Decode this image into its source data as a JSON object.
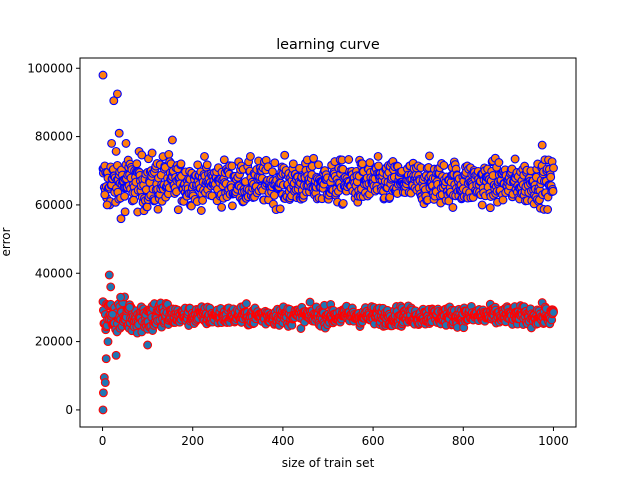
{
  "chart_data": {
    "type": "scatter",
    "title": "learning curve",
    "xlabel": "size of train set",
    "ylabel": "error",
    "xlim": [
      -50,
      1050
    ],
    "ylim": [
      -5000,
      103000
    ],
    "x_ticks": [
      "0",
      "200",
      "400",
      "600",
      "800",
      "1000"
    ],
    "x_tick_values": [
      0,
      200,
      400,
      600,
      800,
      1000
    ],
    "y_ticks": [
      "0",
      "20000",
      "40000",
      "60000",
      "80000",
      "100000"
    ],
    "y_tick_values": [
      0,
      20000,
      40000,
      60000,
      80000,
      100000
    ],
    "grid": false,
    "legend": false,
    "x_range": [
      1,
      1000
    ],
    "x_step": 1,
    "series": [
      {
        "role": "upper band (cross-validation error)",
        "face_color": "#ff7f0e",
        "edge_color": "#0000ff",
        "centre_approx": 66500,
        "spread_approx": 5000,
        "notable_points": [
          [
            1,
            98000
          ],
          [
            5,
            63000
          ],
          [
            10,
            60000
          ],
          [
            20,
            78000
          ],
          [
            25,
            90500
          ],
          [
            33,
            92500
          ],
          [
            37,
            81000
          ],
          [
            50,
            58000
          ],
          [
            52,
            78000
          ],
          [
            155,
            79000
          ],
          [
            975,
            77500
          ]
        ]
      },
      {
        "role": "lower band (training error)",
        "face_color": "#1f77b4",
        "edge_color": "#ff0000",
        "centre_approx": 27500,
        "spread_approx": 2000,
        "notable_points": [
          [
            1,
            0
          ],
          [
            2,
            5000
          ],
          [
            4,
            9500
          ],
          [
            6,
            8000
          ],
          [
            8,
            15000
          ],
          [
            12,
            20000
          ],
          [
            15,
            39500
          ],
          [
            18,
            36000
          ],
          [
            22,
            28000
          ],
          [
            30,
            16000
          ],
          [
            40,
            33000
          ],
          [
            60,
            30000
          ],
          [
            100,
            19000
          ],
          [
            1000,
            28500
          ]
        ]
      }
    ]
  }
}
